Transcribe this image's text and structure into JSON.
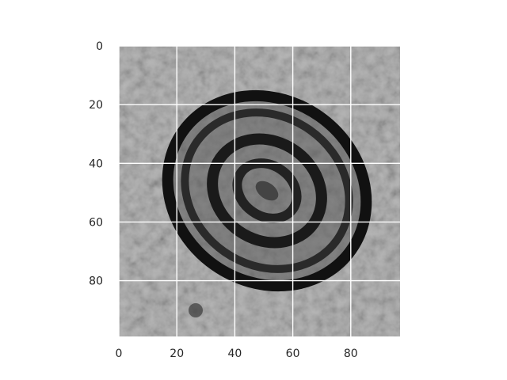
{
  "figure": {
    "type": "image",
    "description_visible_only": true
  },
  "axes": {
    "xlim": [
      0,
      97
    ],
    "ylim": [
      99,
      0
    ],
    "x_ticks": [
      0,
      20,
      40,
      60,
      80
    ],
    "x_tick_labels": [
      "0",
      "20",
      "40",
      "60",
      "80"
    ],
    "y_ticks": [
      0,
      20,
      40,
      60,
      80
    ],
    "y_tick_labels": [
      "0",
      "20",
      "40",
      "60",
      "80"
    ],
    "grid": true,
    "grid_color": "#ffffff",
    "background_color": "#ffffff",
    "tick_label_color": "#262626"
  },
  "image": {
    "colormap": "gray",
    "content": "grayscale microscopy image with a dark elliptical outline"
  }
}
